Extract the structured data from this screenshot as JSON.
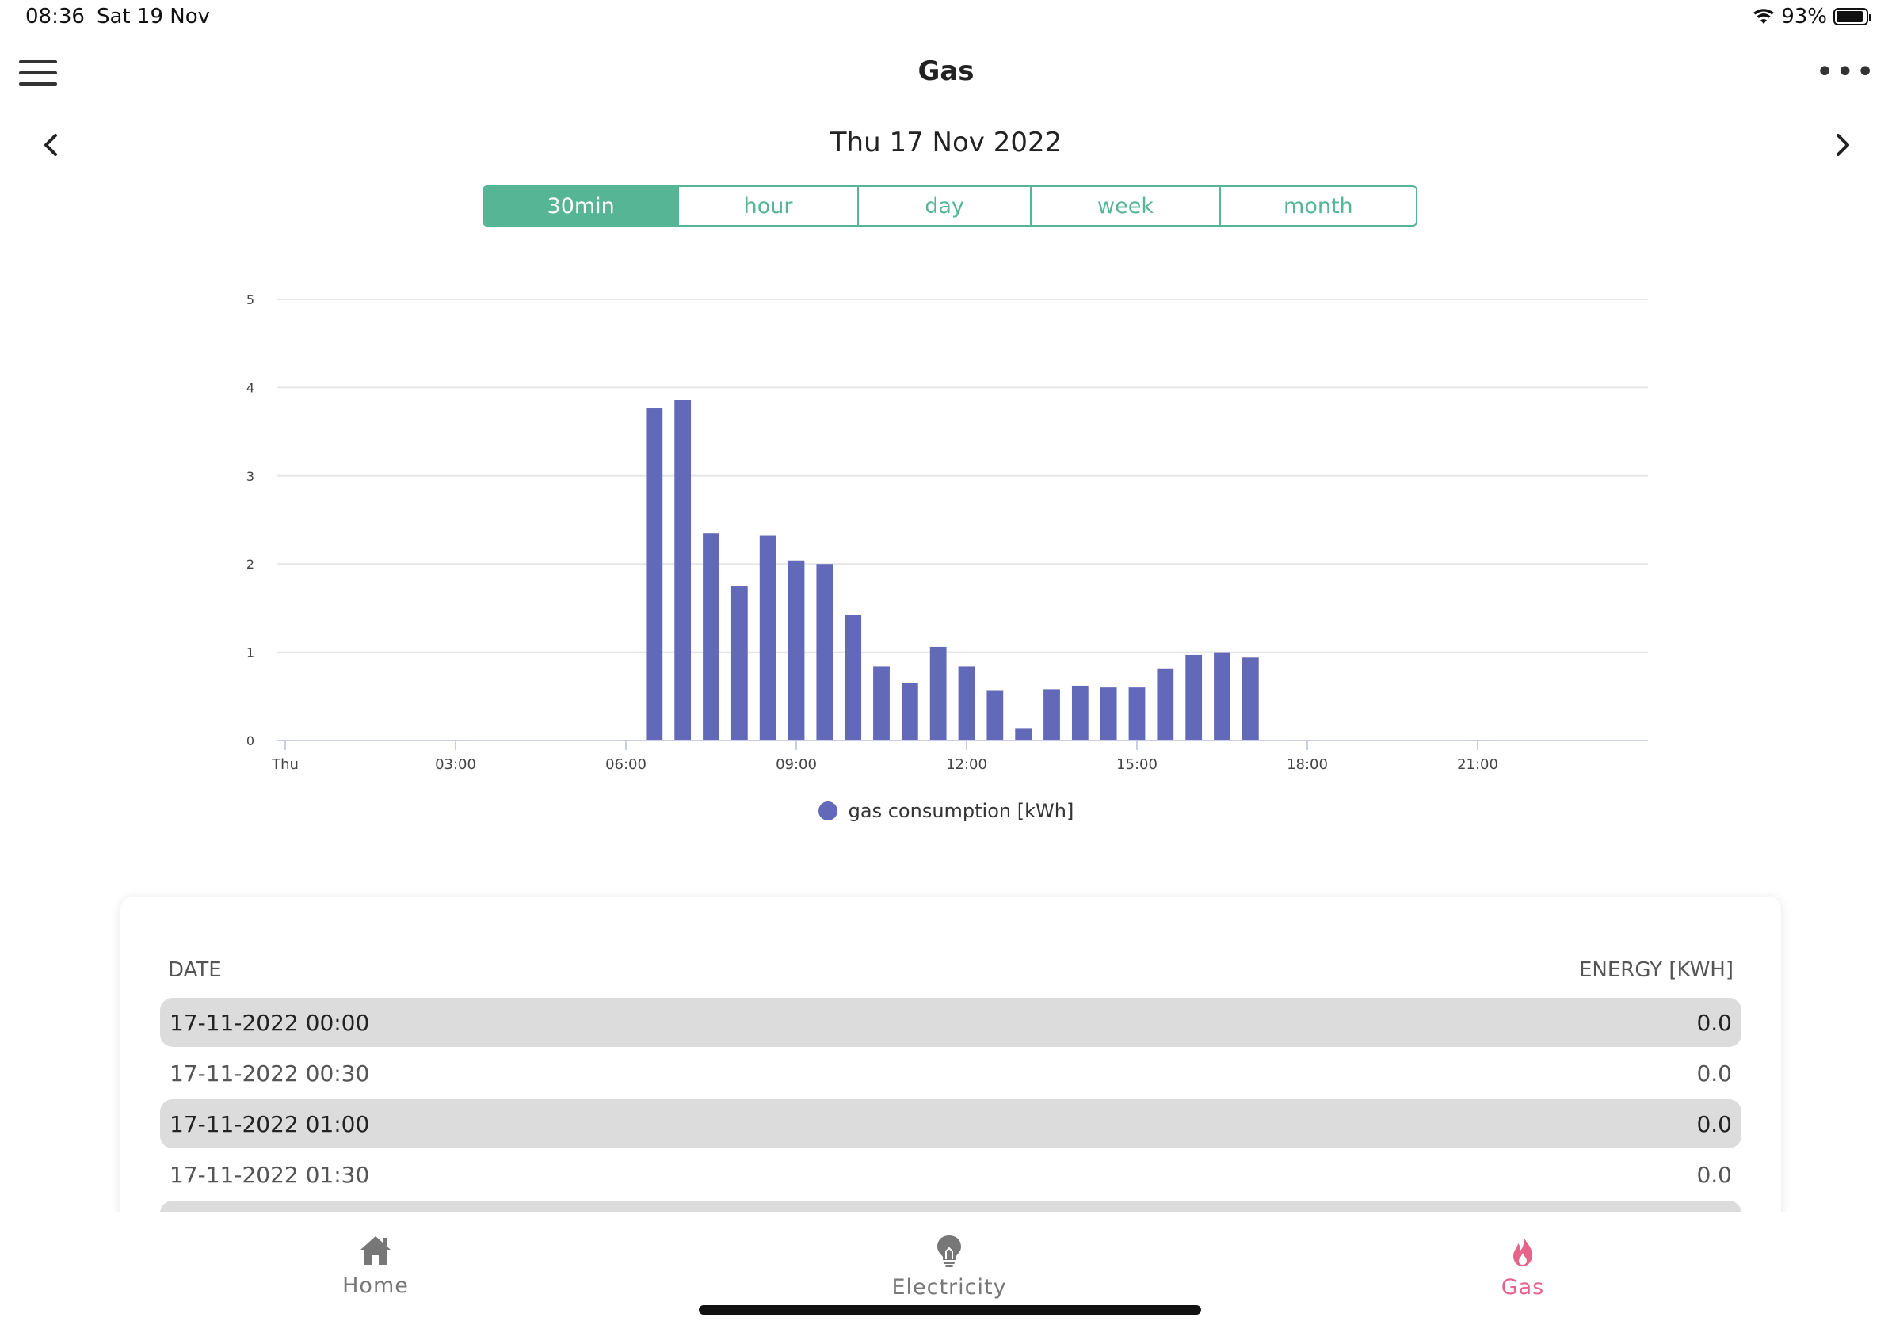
{
  "status_bar": {
    "time": "08:36",
    "date": "Sat 19 Nov",
    "battery": "93%",
    "battery_level": 0.93
  },
  "header": {
    "title": "Gas"
  },
  "date_nav": {
    "label": "Thu 17 Nov 2022"
  },
  "period_tabs": [
    {
      "label": "30min",
      "active": true
    },
    {
      "label": "hour",
      "active": false
    },
    {
      "label": "day",
      "active": false
    },
    {
      "label": "week",
      "active": false
    },
    {
      "label": "month",
      "active": false
    }
  ],
  "chart_data": {
    "type": "bar",
    "series": [
      {
        "name": "gas consumption [kWh]",
        "color": "#6269b8",
        "points": [
          {
            "x": "06:30",
            "y": 3.77
          },
          {
            "x": "07:00",
            "y": 3.86
          },
          {
            "x": "07:30",
            "y": 2.35
          },
          {
            "x": "08:00",
            "y": 1.75
          },
          {
            "x": "08:30",
            "y": 2.32
          },
          {
            "x": "09:00",
            "y": 2.04
          },
          {
            "x": "09:30",
            "y": 2.0
          },
          {
            "x": "10:00",
            "y": 1.42
          },
          {
            "x": "10:30",
            "y": 0.84
          },
          {
            "x": "11:00",
            "y": 0.65
          },
          {
            "x": "11:30",
            "y": 1.06
          },
          {
            "x": "12:00",
            "y": 0.84
          },
          {
            "x": "12:30",
            "y": 0.57
          },
          {
            "x": "13:00",
            "y": 0.14
          },
          {
            "x": "13:30",
            "y": 0.58
          },
          {
            "x": "14:00",
            "y": 0.62
          },
          {
            "x": "14:30",
            "y": 0.6
          },
          {
            "x": "15:00",
            "y": 0.6
          },
          {
            "x": "15:30",
            "y": 0.81
          },
          {
            "x": "16:00",
            "y": 0.97
          },
          {
            "x": "16:30",
            "y": 1.0
          },
          {
            "x": "17:00",
            "y": 0.94
          }
        ]
      }
    ],
    "x_ticks": [
      "Thu",
      "03:00",
      "06:00",
      "09:00",
      "12:00",
      "15:00",
      "18:00",
      "21:00"
    ],
    "xlim": [
      "00:00",
      "24:00"
    ],
    "y_ticks": [
      0,
      1,
      2,
      3,
      4,
      5
    ],
    "ylim": [
      0,
      5
    ],
    "grid": true,
    "legend": "bottom-center"
  },
  "table": {
    "col_date": "DATE",
    "col_energy": "ENERGY [KWH]",
    "rows": [
      {
        "date": "17-11-2022 00:00",
        "energy": "0.0"
      },
      {
        "date": "17-11-2022 00:30",
        "energy": "0.0"
      },
      {
        "date": "17-11-2022 01:00",
        "energy": "0.0"
      },
      {
        "date": "17-11-2022 01:30",
        "energy": "0.0"
      }
    ]
  },
  "tab_bar": {
    "home": "Home",
    "electricity": "Electricity",
    "gas": "Gas",
    "active_color": "#e8638c"
  }
}
